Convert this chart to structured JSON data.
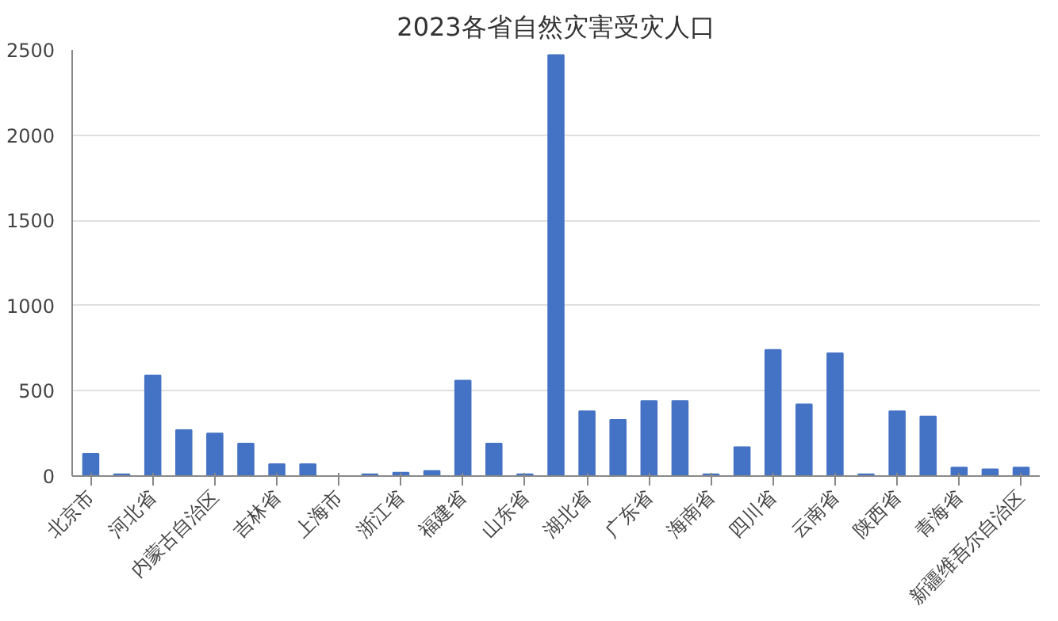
{
  "chart_data": {
    "type": "bar",
    "title": "2023各省自然灾害受灾人口",
    "categories": [
      "北京市",
      null,
      "河北省",
      null,
      "内蒙古自治区",
      null,
      "吉林省",
      null,
      "上海市",
      null,
      "浙江省",
      null,
      "福建省",
      null,
      "山东省",
      null,
      "湖北省",
      null,
      "广东省",
      null,
      "海南省",
      null,
      "四川省",
      null,
      "云南省",
      null,
      "陕西省",
      null,
      "青海省",
      null,
      "新疆维吾尔自治区"
    ],
    "values": [
      130,
      10,
      590,
      270,
      250,
      190,
      70,
      70,
      0,
      10,
      20,
      30,
      560,
      190,
      10,
      2470,
      380,
      330,
      440,
      440,
      10,
      170,
      740,
      420,
      720,
      10,
      380,
      350,
      50,
      40,
      50
    ],
    "color": "#4472c4",
    "ylim": [
      0,
      2500
    ],
    "yticks": [
      0,
      500,
      1000,
      1500,
      2000,
      2500
    ],
    "grid": "y"
  }
}
